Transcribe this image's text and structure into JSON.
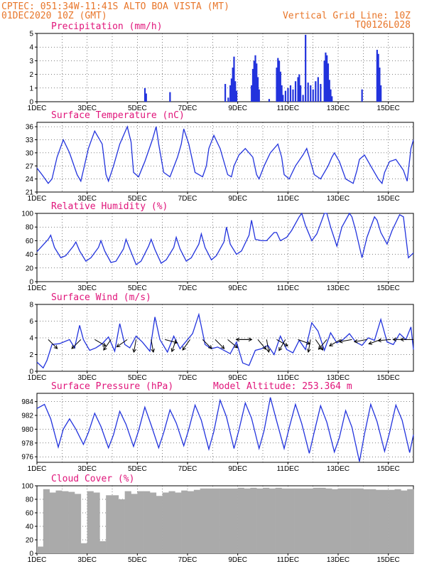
{
  "header": {
    "line1": "CPTEC:   051:34W-11:41S   ALTO BOA VISTA (MT)",
    "line2_left": "01DEC2020 10Z (GMT)",
    "line2_right": "Vertical Grid Line: 10Z",
    "line3_right": "TQ0126L028"
  },
  "colors": {
    "header": "#e8762a",
    "title": "#e0147a",
    "series": "#2233dd",
    "cloud": "#aaaaaa",
    "grid": "#000000"
  },
  "chart_data": [
    {
      "type": "bar",
      "title": "Precipitation (mm/h)",
      "x_tick_labels": [
        "1DEC",
        "3DEC",
        "5DEC",
        "7DEC",
        "9DEC",
        "11DEC",
        "13DEC",
        "15DEC"
      ],
      "x_range": [
        0,
        15
      ],
      "ylim": [
        0,
        5
      ],
      "y_ticks": [
        0,
        1,
        2,
        3,
        4,
        5
      ],
      "grid": true,
      "bars": [
        [
          4.3,
          1.0
        ],
        [
          4.35,
          0.6
        ],
        [
          5.3,
          0.7
        ],
        [
          7.5,
          1.3
        ],
        [
          7.62,
          0.3
        ],
        [
          7.7,
          1.2
        ],
        [
          7.75,
          1.7
        ],
        [
          7.8,
          2.5
        ],
        [
          7.85,
          3.3
        ],
        [
          7.9,
          1.5
        ],
        [
          7.95,
          0.8
        ],
        [
          8.55,
          1.2
        ],
        [
          8.6,
          2.4
        ],
        [
          8.65,
          3.0
        ],
        [
          8.7,
          3.4
        ],
        [
          8.75,
          2.8
        ],
        [
          8.8,
          1.8
        ],
        [
          8.85,
          0.9
        ],
        [
          9.25,
          0.2
        ],
        [
          9.55,
          2.5
        ],
        [
          9.6,
          3.2
        ],
        [
          9.65,
          3.0
        ],
        [
          9.7,
          2.2
        ],
        [
          9.75,
          1.2
        ],
        [
          9.8,
          0.5
        ],
        [
          9.9,
          0.8
        ],
        [
          10.0,
          1.0
        ],
        [
          10.1,
          1.2
        ],
        [
          10.2,
          0.9
        ],
        [
          10.3,
          1.5
        ],
        [
          10.4,
          1.8
        ],
        [
          10.45,
          2.0
        ],
        [
          10.5,
          1.2
        ],
        [
          10.6,
          0.5
        ],
        [
          10.7,
          4.9
        ],
        [
          10.8,
          1.4
        ],
        [
          10.9,
          1.2
        ],
        [
          11.0,
          0.9
        ],
        [
          11.1,
          1.5
        ],
        [
          11.2,
          1.8
        ],
        [
          11.3,
          1.3
        ],
        [
          11.45,
          3.0
        ],
        [
          11.5,
          3.6
        ],
        [
          11.55,
          3.4
        ],
        [
          11.6,
          2.8
        ],
        [
          11.65,
          1.6
        ],
        [
          11.7,
          0.9
        ],
        [
          11.75,
          0.4
        ],
        [
          12.95,
          0.9
        ],
        [
          13.55,
          3.8
        ],
        [
          13.6,
          3.5
        ],
        [
          13.65,
          2.5
        ],
        [
          13.7,
          1.2
        ]
      ]
    },
    {
      "type": "line",
      "title": "Surface Temperature (nC)",
      "x_tick_labels": [
        "1DEC",
        "3DEC",
        "5DEC",
        "7DEC",
        "9DEC",
        "11DEC",
        "13DEC",
        "15DEC"
      ],
      "x_range": [
        0,
        15
      ],
      "ylim": [
        21,
        37
      ],
      "y_ticks": [
        21,
        24,
        27,
        30,
        33,
        36
      ],
      "grid": true,
      "x": [
        0,
        0.2,
        0.45,
        0.6,
        0.8,
        1.05,
        1.3,
        1.6,
        1.75,
        1.85,
        2.05,
        2.3,
        2.6,
        2.75,
        2.85,
        3.05,
        3.3,
        3.6,
        3.75,
        3.85,
        4.05,
        4.3,
        4.6,
        4.75,
        4.85,
        5.05,
        5.3,
        5.6,
        5.75,
        5.85,
        6.05,
        6.3,
        6.6,
        6.75,
        6.85,
        7.05,
        7.3,
        7.6,
        7.75,
        7.85,
        8.05,
        8.3,
        8.6,
        8.75,
        8.85,
        9.05,
        9.3,
        9.6,
        9.75,
        9.85,
        10.05,
        10.3,
        10.6,
        10.75,
        10.85,
        11.05,
        11.3,
        11.6,
        11.75,
        11.85,
        12.05,
        12.3,
        12.6,
        12.75,
        12.85,
        13.05,
        13.3,
        13.6,
        13.75,
        13.85,
        14.05,
        14.3,
        14.6,
        14.75,
        14.9,
        15
      ],
      "values": [
        26.5,
        25,
        23,
        24,
        29,
        33,
        30,
        25,
        23.5,
        26,
        31,
        35,
        32,
        25,
        23.5,
        27,
        32,
        36,
        32.5,
        25.5,
        24.5,
        28,
        33,
        36,
        32,
        25.5,
        24.5,
        29,
        32,
        35.5,
        32,
        25.5,
        24.5,
        27,
        31,
        34,
        31,
        25,
        24.5,
        27,
        29.5,
        31,
        29,
        25,
        24,
        27,
        30,
        32,
        29,
        25,
        24,
        27,
        29.5,
        31,
        29,
        25,
        24,
        27,
        29,
        30,
        28,
        24,
        23,
        26,
        28.5,
        29.5,
        27,
        24,
        23,
        25.5,
        28,
        28.5,
        26,
        23.5,
        31,
        33
      ]
    },
    {
      "type": "line",
      "title": "Relative Humidity (%)",
      "x_tick_labels": [
        "1DEC",
        "3DEC",
        "5DEC",
        "7DEC",
        "9DEC",
        "11DEC",
        "13DEC",
        "15DEC"
      ],
      "x_range": [
        0,
        15
      ],
      "ylim": [
        0,
        100
      ],
      "y_ticks": [
        0,
        20,
        40,
        60,
        80,
        100
      ],
      "grid": true,
      "x": [
        0,
        0.2,
        0.45,
        0.55,
        0.7,
        0.95,
        1.15,
        1.45,
        1.55,
        1.7,
        1.95,
        2.15,
        2.45,
        2.55,
        2.7,
        2.95,
        3.15,
        3.45,
        3.55,
        3.7,
        3.95,
        4.15,
        4.45,
        4.55,
        4.7,
        4.95,
        5.15,
        5.45,
        5.55,
        5.7,
        5.95,
        6.15,
        6.45,
        6.55,
        6.7,
        6.95,
        7.15,
        7.45,
        7.55,
        7.7,
        7.95,
        8.15,
        8.45,
        8.55,
        8.7,
        8.95,
        9.15,
        9.45,
        9.55,
        9.7,
        9.95,
        10.15,
        10.45,
        10.55,
        10.7,
        10.95,
        11.15,
        11.45,
        11.55,
        11.7,
        11.95,
        12.15,
        12.45,
        12.55,
        12.7,
        12.95,
        13.15,
        13.45,
        13.55,
        13.7,
        13.95,
        14.15,
        14.45,
        14.6,
        14.8,
        15
      ],
      "values": [
        44,
        52,
        62,
        68,
        50,
        35,
        38,
        52,
        58,
        45,
        30,
        35,
        50,
        60,
        45,
        28,
        30,
        48,
        62,
        48,
        25,
        30,
        52,
        62,
        47,
        27,
        32,
        50,
        65,
        48,
        30,
        35,
        55,
        70,
        50,
        32,
        38,
        58,
        80,
        55,
        40,
        45,
        68,
        90,
        62,
        60,
        60,
        72,
        72,
        60,
        65,
        75,
        95,
        100,
        82,
        60,
        70,
        100,
        100,
        80,
        52,
        80,
        100,
        95,
        75,
        35,
        65,
        95,
        90,
        72,
        55,
        75,
        98,
        95,
        35,
        42
      ]
    },
    {
      "type": "line",
      "title": "Surface Wind (m/s)",
      "x_tick_labels": [
        "1DEC",
        "3DEC",
        "5DEC",
        "7DEC",
        "9DEC",
        "11DEC",
        "13DEC",
        "15DEC"
      ],
      "x_range": [
        0,
        15
      ],
      "ylim": [
        0,
        8
      ],
      "y_ticks": [
        0,
        2,
        4,
        6,
        8
      ],
      "grid": true,
      "x": [
        0,
        0.25,
        0.4,
        0.6,
        0.9,
        1.3,
        1.5,
        1.7,
        1.85,
        2.1,
        2.35,
        2.6,
        2.85,
        3.1,
        3.3,
        3.5,
        3.7,
        3.95,
        4.2,
        4.5,
        4.7,
        4.9,
        5.2,
        5.45,
        5.7,
        5.95,
        6.2,
        6.45,
        6.7,
        6.95,
        7.2,
        7.45,
        7.7,
        7.95,
        8.2,
        8.45,
        8.7,
        8.95,
        9.2,
        9.45,
        9.7,
        9.95,
        10.2,
        10.45,
        10.7,
        10.95,
        11.2,
        11.45,
        11.7,
        11.95,
        12.2,
        12.45,
        12.7,
        12.95,
        13.2,
        13.45,
        13.7,
        13.95,
        14.2,
        14.45,
        14.7,
        14.9,
        15
      ],
      "values": [
        1.1,
        0.4,
        1.3,
        3.2,
        3.3,
        3.8,
        2.8,
        5.5,
        3.8,
        2.5,
        2.8,
        3.3,
        4.1,
        2.4,
        5.7,
        3.2,
        2.8,
        4.2,
        3.5,
        2.4,
        6.5,
        3.8,
        2.3,
        4.2,
        2.7,
        3.6,
        4.5,
        6.8,
        3.2,
        2.7,
        2.9,
        2.5,
        2.1,
        3.5,
        1.0,
        0.7,
        2.5,
        2.7,
        3.1,
        2.0,
        4.2,
        2.6,
        2.2,
        3.7,
        2.6,
        5.8,
        4.8,
        2.5,
        4.6,
        3.4,
        3.8,
        4.5,
        3.5,
        3.1,
        4.0,
        3.7,
        6.2,
        3.5,
        3.2,
        4.5,
        3.8,
        5.3,
        2.6
      ],
      "arrows": [
        [
          0.45,
          -45
        ],
        [
          1.75,
          -135
        ],
        [
          2.3,
          -30
        ],
        [
          2.95,
          -125
        ],
        [
          3.6,
          -145
        ],
        [
          3.95,
          -100
        ],
        [
          4.55,
          -80
        ],
        [
          5.1,
          -15
        ],
        [
          5.55,
          -110
        ],
        [
          6.1,
          -125
        ],
        [
          6.6,
          -45
        ],
        [
          7.1,
          -45
        ],
        [
          7.6,
          -40
        ],
        [
          8.05,
          0
        ],
        [
          8.45,
          -180
        ],
        [
          8.8,
          -50
        ],
        [
          9.15,
          -80
        ],
        [
          9.55,
          -30
        ],
        [
          9.9,
          -120
        ],
        [
          10.4,
          -20
        ],
        [
          10.9,
          -100
        ],
        [
          11.1,
          -55
        ],
        [
          11.55,
          -130
        ],
        [
          12.1,
          -150
        ],
        [
          12.55,
          -170
        ],
        [
          13.15,
          -170
        ],
        [
          13.7,
          -160
        ],
        [
          14.1,
          -175
        ],
        [
          14.7,
          -180
        ],
        [
          15.0,
          -180
        ]
      ]
    },
    {
      "type": "line",
      "title": "Surface Pressure (hPa)",
      "annotation": "Model Altitude: 253.364 m",
      "x_tick_labels": [
        "1DEC",
        "3DEC",
        "5DEC",
        "7DEC",
        "9DEC",
        "11DEC",
        "13DEC",
        "15DEC"
      ],
      "x_range": [
        0,
        15
      ],
      "ylim": [
        975.2,
        985.2
      ],
      "y_ticks": [
        976,
        978,
        980,
        982,
        984
      ],
      "grid": true,
      "x": [
        0,
        0.3,
        0.55,
        0.85,
        1.05,
        1.3,
        1.55,
        1.85,
        2.05,
        2.3,
        2.55,
        2.85,
        3.05,
        3.3,
        3.55,
        3.85,
        4.05,
        4.3,
        4.55,
        4.85,
        5.05,
        5.3,
        5.55,
        5.85,
        6.05,
        6.3,
        6.55,
        6.85,
        7.05,
        7.3,
        7.55,
        7.85,
        8.05,
        8.3,
        8.55,
        8.85,
        9.05,
        9.3,
        9.55,
        9.85,
        10.05,
        10.3,
        10.55,
        10.85,
        11.05,
        11.3,
        11.55,
        11.85,
        12.05,
        12.3,
        12.55,
        12.85,
        13.05,
        13.3,
        13.55,
        13.85,
        14.05,
        14.3,
        14.55,
        14.85,
        15
      ],
      "values": [
        983,
        983.6,
        981.5,
        977.4,
        980,
        981.5,
        980,
        977.8,
        979.5,
        982.3,
        980.4,
        977.3,
        979.2,
        982.6,
        980.7,
        977.5,
        979.8,
        983.2,
        980.6,
        977.3,
        979.5,
        982.8,
        980.9,
        977.6,
        980,
        983.5,
        981.3,
        977.1,
        979.7,
        984.2,
        981.8,
        977.2,
        979.9,
        983.8,
        981.6,
        977.2,
        979.8,
        984.6,
        981.2,
        977.2,
        980.2,
        983.6,
        980.8,
        976.5,
        979.6,
        983.4,
        981,
        976.7,
        978.8,
        982.7,
        980.3,
        975.3,
        979.3,
        983.6,
        981.1,
        976.8,
        979.5,
        983.5,
        981.3,
        976.6,
        979.2
      ]
    },
    {
      "type": "bar",
      "title": "Cloud Cover (%)",
      "x_tick_labels": [
        "1DEC",
        "3DEC",
        "5DEC",
        "7DEC",
        "9DEC",
        "11DEC",
        "13DEC",
        "15DEC"
      ],
      "x_range": [
        0,
        15
      ],
      "ylim": [
        0,
        100
      ],
      "y_ticks": [
        0,
        20,
        40,
        60,
        80,
        100
      ],
      "grid": true,
      "x": [
        0,
        0.25,
        0.5,
        0.75,
        1.0,
        1.25,
        1.5,
        1.75,
        2.0,
        2.25,
        2.5,
        2.75,
        3.0,
        3.25,
        3.5,
        3.75,
        4.0,
        4.25,
        4.5,
        4.75,
        5.0,
        5.25,
        5.5,
        5.75,
        6.0,
        6.25,
        6.5,
        6.75,
        7.0,
        7.25,
        7.5,
        7.75,
        8.0,
        8.25,
        8.5,
        8.75,
        9.0,
        9.25,
        9.5,
        9.75,
        10.0,
        10.25,
        10.5,
        10.75,
        11.0,
        11.25,
        11.5,
        11.75,
        12.0,
        12.25,
        12.5,
        12.75,
        13.0,
        13.25,
        13.5,
        13.75,
        14.0,
        14.25,
        14.5,
        14.75,
        15
      ],
      "values": [
        10,
        95,
        90,
        93,
        92,
        91,
        88,
        15,
        92,
        90,
        18,
        86,
        86,
        80,
        92,
        88,
        92,
        92,
        90,
        85,
        90,
        92,
        90,
        93,
        92,
        94,
        96,
        96,
        96,
        96,
        96,
        96,
        97,
        96,
        97,
        96,
        97,
        96,
        97,
        96,
        96,
        96,
        96,
        96,
        97,
        97,
        96,
        95,
        96,
        96,
        96,
        96,
        95,
        95,
        94,
        94,
        94,
        95,
        93,
        95,
        90
      ]
    }
  ]
}
